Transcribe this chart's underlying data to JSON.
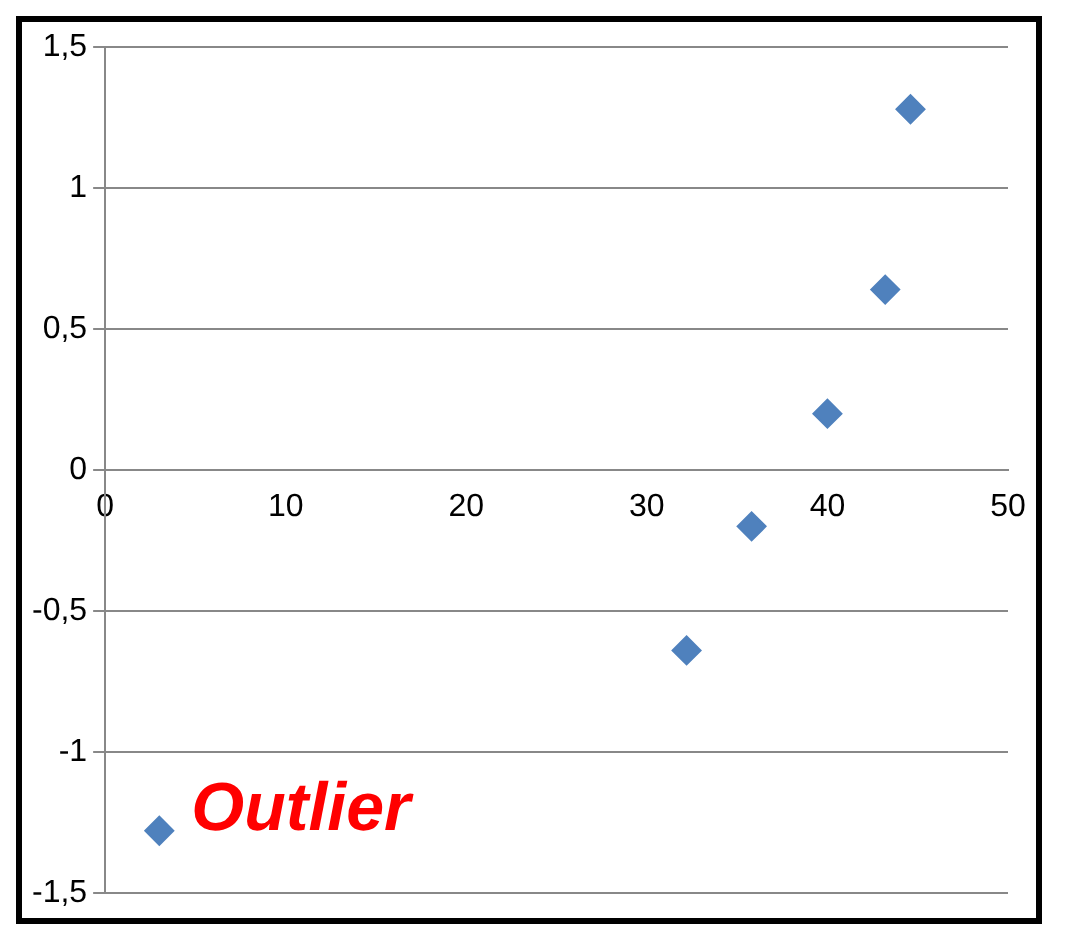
{
  "chart_data": {
    "type": "scatter",
    "x": [
      3,
      32.2,
      35.8,
      40,
      43.2,
      44.6
    ],
    "series": [
      {
        "color": "#4f81bd",
        "values": [
          -1.28,
          -0.64,
          -0.2,
          0.2,
          0.64,
          1.28
        ]
      }
    ],
    "xlim": [
      0,
      50
    ],
    "xticks": [
      0,
      10,
      20,
      30,
      40,
      50
    ],
    "ylim": [
      -1.5,
      1.5
    ],
    "yticks": [
      {
        "value": -1.5,
        "label": "-1,5"
      },
      -1,
      {
        "value": -0.5,
        "label": "-0,5"
      },
      0,
      {
        "value": 0.5,
        "label": "0,5"
      },
      1,
      {
        "value": 1.5,
        "label": "1,5"
      }
    ],
    "grid": "y",
    "marker": "diamond",
    "legend": false,
    "annotations": [
      {
        "text": "Outlier",
        "x": 3,
        "y": -1.28
      }
    ]
  }
}
